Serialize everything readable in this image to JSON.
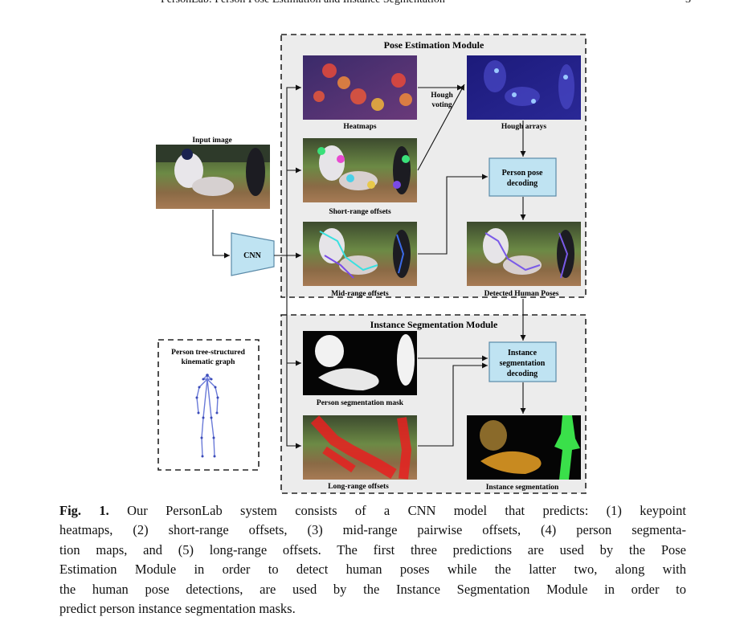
{
  "header": {
    "running_title": "PersonLab: Person Pose Estimation and Instance Segmentation",
    "page_number": "3"
  },
  "figure": {
    "input_label": "Input image",
    "cnn_label": "CNN",
    "pose_module_title": "Pose Estimation Module",
    "seg_module_title": "Instance Segmentation Module",
    "panels": {
      "heatmaps": "Heatmaps",
      "short_range": "Short-range offsets",
      "mid_range": "Mid-range offsets",
      "hough_arrays": "Hough arrays",
      "detected_poses": "Detected Human Poses",
      "seg_mask": "Person segmentation mask",
      "long_range": "Long-range offsets",
      "instance_seg": "Instance segmentation"
    },
    "hough_voting": [
      "Hough",
      "voting"
    ],
    "pose_decoding": [
      "Person pose",
      "decoding"
    ],
    "seg_decoding": [
      "Instance",
      "segmentation",
      "decoding"
    ],
    "kinematic_graph": [
      "Person tree-structured",
      "kinematic graph"
    ]
  },
  "caption": {
    "label": "Fig. 1.",
    "lines": [
      " Our PersonLab system consists of a CNN model that predicts: (1) keypoint",
      "heatmaps, (2) short-range offsets, (3) mid-range pairwise offsets, (4) person segmenta-",
      "tion maps, and (5) long-range offsets. The first three predictions are used by the Pose",
      "Estimation Module in order to detect human poses while the latter two, along with",
      "the human pose detections, are used by the Instance Segmentation Module in order to",
      "predict person instance segmentation masks."
    ]
  }
}
